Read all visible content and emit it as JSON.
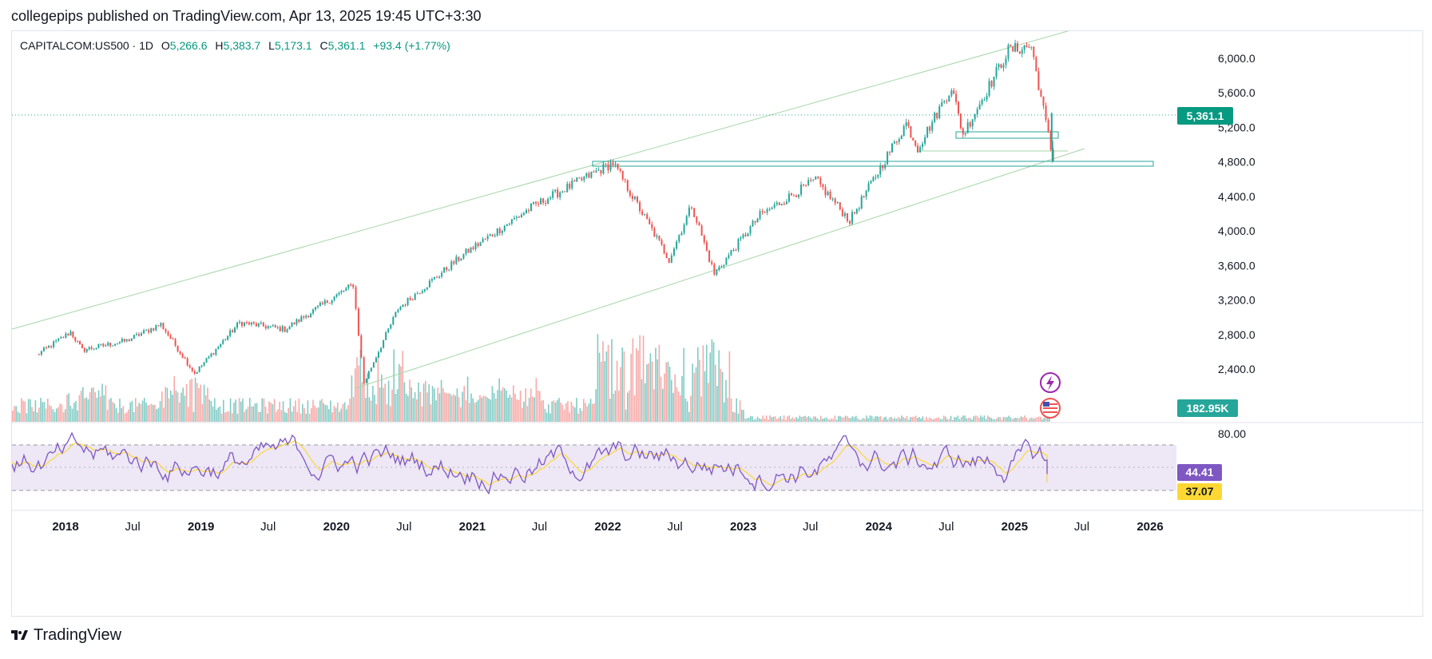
{
  "header": {
    "publisher": "collegepips published on TradingView.com, Apr 13, 2025 19:45 UTC+3:30"
  },
  "legend": {
    "symbol": "CAPITALCOM:US500 · 1D",
    "o_label": "O",
    "o_value": "5,266.6",
    "h_label": "H",
    "h_value": "5,383.7",
    "l_label": "L",
    "l_value": "5,173.1",
    "c_label": "C",
    "c_value": "5,361.1",
    "change": "+93.4 (+1.77%)"
  },
  "badges": {
    "price": "5,361.1",
    "volume": "182.95K",
    "rsi": "44.41",
    "rsi_ma": "37.07"
  },
  "footer": {
    "brand": "TradingView"
  },
  "colors": {
    "up": "#26a69a",
    "down": "#ef5350",
    "channel": "#a5d6a7",
    "zone": "#26a69a",
    "rsi": "#7e57c2",
    "rsi_ma": "#fdd835",
    "rsi_band": "#ede7f6"
  },
  "icons": [
    "lightning-event-icon",
    "us-flag-icon"
  ],
  "chart_data": {
    "type": "line",
    "title": "CAPITALCOM:US500 · 1D",
    "xlabel": "",
    "ylabel": "",
    "x_tick_labels": [
      "2018",
      "Jul",
      "2019",
      "Jul",
      "2020",
      "Jul",
      "2021",
      "Jul",
      "2022",
      "Jul",
      "2023",
      "Jul",
      "2024",
      "Jul",
      "2025",
      "Jul",
      "2026"
    ],
    "y_tick_labels": [
      "6,000.0",
      "5,600.0",
      "5,200.0",
      "4,800.0",
      "4,400.0",
      "4,000.0",
      "3,600.0",
      "3,200.0",
      "2,800.0",
      "2,400.0"
    ],
    "ylim": [
      2300,
      6250
    ],
    "series": [
      {
        "values": [
          {
            "x": "2017-10",
            "y": 2560
          },
          {
            "x": "2018-01",
            "y": 2830
          },
          {
            "x": "2018-02",
            "y": 2620
          },
          {
            "x": "2018-06",
            "y": 2730
          },
          {
            "x": "2018-09",
            "y": 2920
          },
          {
            "x": "2018-12",
            "y": 2350
          },
          {
            "x": "2019-04",
            "y": 2940
          },
          {
            "x": "2019-08",
            "y": 2860
          },
          {
            "x": "2020-02",
            "y": 3380
          },
          {
            "x": "2020-03",
            "y": 2240
          },
          {
            "x": "2020-06",
            "y": 3100
          },
          {
            "x": "2020-12",
            "y": 3750
          },
          {
            "x": "2021-06",
            "y": 4290
          },
          {
            "x": "2022-01",
            "y": 4790
          },
          {
            "x": "2022-06",
            "y": 3670
          },
          {
            "x": "2022-08",
            "y": 4300
          },
          {
            "x": "2022-10",
            "y": 3500
          },
          {
            "x": "2023-02",
            "y": 4180
          },
          {
            "x": "2023-07",
            "y": 4590
          },
          {
            "x": "2023-10",
            "y": 4120
          },
          {
            "x": "2024-03",
            "y": 5250
          },
          {
            "x": "2024-04",
            "y": 4960
          },
          {
            "x": "2024-07",
            "y": 5670
          },
          {
            "x": "2024-08",
            "y": 5120
          },
          {
            "x": "2024-12",
            "y": 6090
          },
          {
            "x": "2025-02",
            "y": 6140
          },
          {
            "x": "2025-04",
            "y": 4810
          },
          {
            "x": "2025-04-11",
            "y": 5361.1
          }
        ]
      }
    ],
    "volume_badge": "182.95K",
    "rsi": {
      "levels": [
        70,
        50,
        30
      ],
      "y_tick_labels": [
        "80.00"
      ],
      "value": 44.41,
      "ma_value": 37.07
    },
    "grid": false,
    "legend": "top-left"
  }
}
